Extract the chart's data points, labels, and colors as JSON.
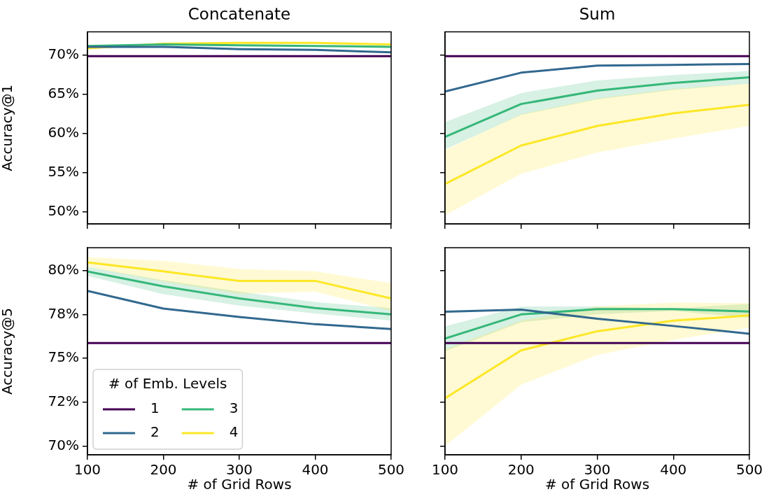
{
  "chart_data": [
    {
      "type": "line",
      "title": "Concatenate",
      "ylabel": "Accuracy@1",
      "x": [
        100,
        200,
        300,
        400,
        500
      ],
      "xlim": [
        100,
        500
      ],
      "xticks": [
        {
          "value": 100,
          "label": null
        },
        {
          "value": 200,
          "label": null
        },
        {
          "value": 300,
          "label": null
        },
        {
          "value": 400,
          "label": null
        },
        {
          "value": 500,
          "label": null
        }
      ],
      "ylim": [
        48.5,
        73.0
      ],
      "yticks": [
        {
          "value": 50,
          "label": "50%"
        },
        {
          "value": 55,
          "label": "55%"
        },
        {
          "value": 60,
          "label": "60%"
        },
        {
          "value": 65,
          "label": "65%"
        },
        {
          "value": 70,
          "label": "70%"
        }
      ],
      "tick_labels": "y",
      "marker": "none",
      "series": [
        {
          "color": "#440154",
          "values": [
            69.9,
            69.9,
            69.9,
            69.9,
            69.9
          ]
        },
        {
          "color": "#31688e",
          "values": [
            71.1,
            71.1,
            70.8,
            70.7,
            70.4
          ]
        },
        {
          "color": "#35b779",
          "values": [
            71.2,
            71.4,
            71.3,
            71.2,
            71.1
          ]
        },
        {
          "color": "#fde725",
          "values": [
            70.9,
            71.5,
            71.6,
            71.6,
            71.4
          ]
        }
      ]
    },
    {
      "type": "line",
      "title": "Sum",
      "x": [
        100,
        200,
        300,
        400,
        500
      ],
      "xlim": [
        100,
        500
      ],
      "xticks": [
        {
          "value": 100,
          "label": null
        },
        {
          "value": 200,
          "label": null
        },
        {
          "value": 300,
          "label": null
        },
        {
          "value": 400,
          "label": null
        },
        {
          "value": 500,
          "label": null
        }
      ],
      "ylim": [
        48.5,
        73.0
      ],
      "yticks": [
        {
          "value": 50,
          "label": null
        },
        {
          "value": 55,
          "label": null
        },
        {
          "value": 60,
          "label": null
        },
        {
          "value": 65,
          "label": null
        },
        {
          "value": 70,
          "label": null
        }
      ],
      "tick_labels": false,
      "marker": "none",
      "series": [
        {
          "color": "#440154",
          "values": [
            69.9,
            69.9,
            69.9,
            69.9,
            69.9
          ]
        },
        {
          "color": "#31688e",
          "values": [
            65.4,
            67.8,
            68.7,
            68.8,
            68.9
          ]
        },
        {
          "color": "#35b779",
          "values": [
            59.6,
            63.8,
            65.5,
            66.5,
            67.2
          ],
          "lower": [
            58.0,
            62.4,
            64.4,
            65.6,
            66.4
          ],
          "upper": [
            61.5,
            65.2,
            66.8,
            67.5,
            68.0
          ]
        },
        {
          "color": "#fde725",
          "values": [
            53.6,
            58.5,
            61.0,
            62.6,
            63.7
          ],
          "lower": [
            49.6,
            54.9,
            57.6,
            59.4,
            61.0
          ],
          "upper": [
            57.9,
            62.5,
            64.5,
            65.7,
            66.4
          ]
        }
      ]
    },
    {
      "type": "line",
      "xlabel": "# of Grid Rows",
      "ylabel": "Accuracy@5",
      "x": [
        100,
        200,
        300,
        400,
        500
      ],
      "xlim": [
        100,
        500
      ],
      "xticks": [
        100,
        200,
        300,
        400,
        500
      ],
      "ylim": [
        69.5,
        81.3
      ],
      "yticks": [
        {
          "value": 70,
          "label": "70%"
        },
        {
          "value": 72.5,
          "label": "72%"
        },
        {
          "value": 75,
          "label": "75%"
        },
        {
          "value": 77.5,
          "label": "78%"
        },
        {
          "value": 80,
          "label": "80%"
        }
      ],
      "marker": "none",
      "legend": "bottom left",
      "legend_title": "# of Emb. Levels",
      "series": [
        {
          "name": "1",
          "color": "#440154",
          "values": [
            75.87,
            75.87,
            75.87,
            75.87,
            75.87
          ]
        },
        {
          "name": "2",
          "color": "#31688e",
          "values": [
            78.84,
            77.83,
            77.35,
            76.94,
            76.67
          ]
        },
        {
          "name": "3",
          "color": "#35b779",
          "values": [
            79.95,
            79.1,
            78.41,
            77.86,
            77.5
          ],
          "lower": [
            79.7,
            78.65,
            78.0,
            77.55,
            77.15
          ],
          "upper": [
            80.2,
            79.45,
            78.8,
            78.2,
            77.86
          ]
        },
        {
          "name": "4",
          "color": "#fde725",
          "values": [
            80.46,
            79.95,
            79.41,
            79.41,
            78.41
          ],
          "lower": [
            80.2,
            79.37,
            78.68,
            78.8,
            77.7
          ],
          "upper": [
            80.75,
            80.55,
            80.08,
            79.95,
            79.29
          ]
        }
      ]
    },
    {
      "type": "line",
      "xlabel": "# of Grid Rows",
      "x": [
        100,
        200,
        300,
        400,
        500
      ],
      "xlim": [
        100,
        500
      ],
      "xticks": [
        100,
        200,
        300,
        400,
        500
      ],
      "ylim": [
        69.5,
        81.3
      ],
      "yticks": [
        {
          "value": 70,
          "label": null
        },
        {
          "value": 72.5,
          "label": null
        },
        {
          "value": 75,
          "label": null
        },
        {
          "value": 77.5,
          "label": null
        },
        {
          "value": 80,
          "label": null
        }
      ],
      "tick_labels": "x",
      "marker": "none",
      "series": [
        {
          "color": "#440154",
          "values": [
            75.87,
            75.87,
            75.87,
            75.87,
            75.87
          ]
        },
        {
          "color": "#31688e",
          "values": [
            77.65,
            77.77,
            77.25,
            76.84,
            76.4
          ]
        },
        {
          "color": "#35b779",
          "values": [
            76.12,
            77.5,
            77.8,
            77.8,
            77.66
          ],
          "lower": [
            75.4,
            77.05,
            77.5,
            77.7,
            77.3
          ],
          "upper": [
            76.83,
            77.95,
            77.95,
            77.84,
            78.1
          ]
        },
        {
          "color": "#fde725",
          "values": [
            72.72,
            75.45,
            76.54,
            77.14,
            77.44
          ],
          "lower": [
            70.0,
            73.5,
            75.19,
            76.05,
            76.75
          ],
          "upper": [
            75.52,
            77.14,
            77.95,
            78.17,
            78.14
          ]
        }
      ]
    }
  ]
}
